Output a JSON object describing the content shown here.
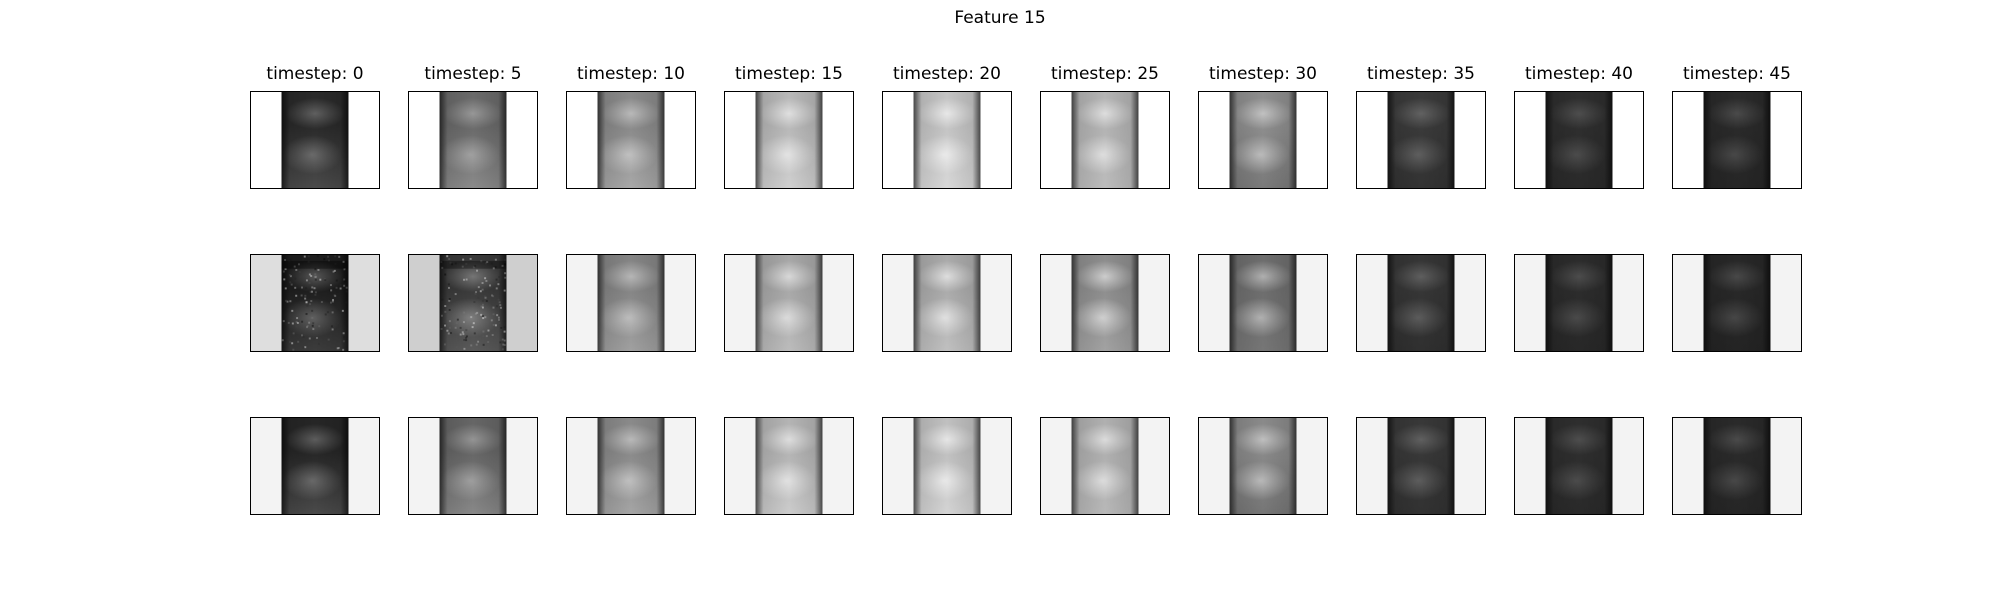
{
  "figure": {
    "title": "Feature 15",
    "columns": [
      {
        "title": "timestep: 0",
        "rows": [
          {
            "bg": "#ffffff",
            "top": "#2a2a2a",
            "bottom": "#4a4a4a",
            "bulge": 0.25,
            "noise": false
          },
          {
            "bg": "#dedede",
            "top": "#1e1e1e",
            "bottom": "#3c3c3c",
            "bulge": 0.25,
            "noise": true
          },
          {
            "bg": "#f3f3f3",
            "top": "#262626",
            "bottom": "#4a4a4a",
            "bulge": 0.25,
            "noise": false
          }
        ]
      },
      {
        "title": "timestep: 5",
        "rows": [
          {
            "bg": "#ffffff",
            "top": "#6a6a6a",
            "bottom": "#8a8a8a",
            "bulge": 0.3,
            "noise": false
          },
          {
            "bg": "#cfcfcf",
            "top": "#3a3a3a",
            "bottom": "#5a5a5a",
            "bulge": 0.3,
            "noise": true
          },
          {
            "bg": "#f3f3f3",
            "top": "#666666",
            "bottom": "#888888",
            "bulge": 0.3,
            "noise": false
          }
        ]
      },
      {
        "title": "timestep: 10",
        "rows": [
          {
            "bg": "#ffffff",
            "top": "#8a8a8a",
            "bottom": "#a8a8a8",
            "bulge": 0.4,
            "noise": false
          },
          {
            "bg": "#f3f3f3",
            "top": "#858585",
            "bottom": "#a0a0a0",
            "bulge": 0.4,
            "noise": false
          },
          {
            "bg": "#f3f3f3",
            "top": "#8a8a8a",
            "bottom": "#a5a5a5",
            "bulge": 0.4,
            "noise": false
          }
        ]
      },
      {
        "title": "timestep: 15",
        "rows": [
          {
            "bg": "#ffffff",
            "top": "#b8b8b8",
            "bottom": "#d0d0d0",
            "bulge": 0.55,
            "noise": false
          },
          {
            "bg": "#f3f3f3",
            "top": "#a8a8a8",
            "bottom": "#bcbcbc",
            "bulge": 0.55,
            "noise": false
          },
          {
            "bg": "#f3f3f3",
            "top": "#b4b4b4",
            "bottom": "#cccccc",
            "bulge": 0.55,
            "noise": false
          }
        ]
      },
      {
        "title": "timestep: 20",
        "rows": [
          {
            "bg": "#ffffff",
            "top": "#c4c4c4",
            "bottom": "#d8d8d8",
            "bulge": 0.6,
            "noise": false
          },
          {
            "bg": "#f3f3f3",
            "top": "#ababab",
            "bottom": "#c0c0c0",
            "bulge": 0.6,
            "noise": false
          },
          {
            "bg": "#f3f3f3",
            "top": "#c0c0c0",
            "bottom": "#d4d4d4",
            "bulge": 0.6,
            "noise": false
          }
        ]
      },
      {
        "title": "timestep: 25",
        "rows": [
          {
            "bg": "#ffffff",
            "top": "#b4b4b4",
            "bottom": "#bcbcbc",
            "bulge": 0.55,
            "noise": false
          },
          {
            "bg": "#f3f3f3",
            "top": "#8e8e8e",
            "bottom": "#a2a2a2",
            "bulge": 0.55,
            "noise": false
          },
          {
            "bg": "#f3f3f3",
            "top": "#b0b0b0",
            "bottom": "#b8b8b8",
            "bulge": 0.55,
            "noise": false
          }
        ]
      },
      {
        "title": "timestep: 30",
        "rows": [
          {
            "bg": "#ffffff",
            "top": "#8e8e8e",
            "bottom": "#7a7a7a",
            "bulge": 0.45,
            "noise": false
          },
          {
            "bg": "#f3f3f3",
            "top": "#6e6e6e",
            "bottom": "#767676",
            "bulge": 0.45,
            "noise": false
          },
          {
            "bg": "#f3f3f3",
            "top": "#8a8a8a",
            "bottom": "#767676",
            "bulge": 0.45,
            "noise": false
          }
        ]
      },
      {
        "title": "timestep: 35",
        "rows": [
          {
            "bg": "#ffffff",
            "top": "#3a3a3a",
            "bottom": "#333333",
            "bulge": 0.2,
            "noise": false
          },
          {
            "bg": "#f3f3f3",
            "top": "#363636",
            "bottom": "#303030",
            "bulge": 0.2,
            "noise": false
          },
          {
            "bg": "#f3f3f3",
            "top": "#383838",
            "bottom": "#323232",
            "bulge": 0.2,
            "noise": false
          }
        ]
      },
      {
        "title": "timestep: 40",
        "rows": [
          {
            "bg": "#ffffff",
            "top": "#2e2e2e",
            "bottom": "#2a2a2a",
            "bulge": 0.15,
            "noise": false
          },
          {
            "bg": "#f3f3f3",
            "top": "#2c2c2c",
            "bottom": "#282828",
            "bulge": 0.15,
            "noise": false
          },
          {
            "bg": "#f3f3f3",
            "top": "#2e2e2e",
            "bottom": "#2a2a2a",
            "bulge": 0.15,
            "noise": false
          }
        ]
      },
      {
        "title": "timestep: 45",
        "rows": [
          {
            "bg": "#ffffff",
            "top": "#2a2a2a",
            "bottom": "#262626",
            "bulge": 0.15,
            "noise": false
          },
          {
            "bg": "#f3f3f3",
            "top": "#282828",
            "bottom": "#242424",
            "bulge": 0.15,
            "noise": false
          },
          {
            "bg": "#f3f3f3",
            "top": "#2a2a2a",
            "bottom": "#262626",
            "bulge": 0.15,
            "noise": false
          }
        ]
      }
    ]
  }
}
